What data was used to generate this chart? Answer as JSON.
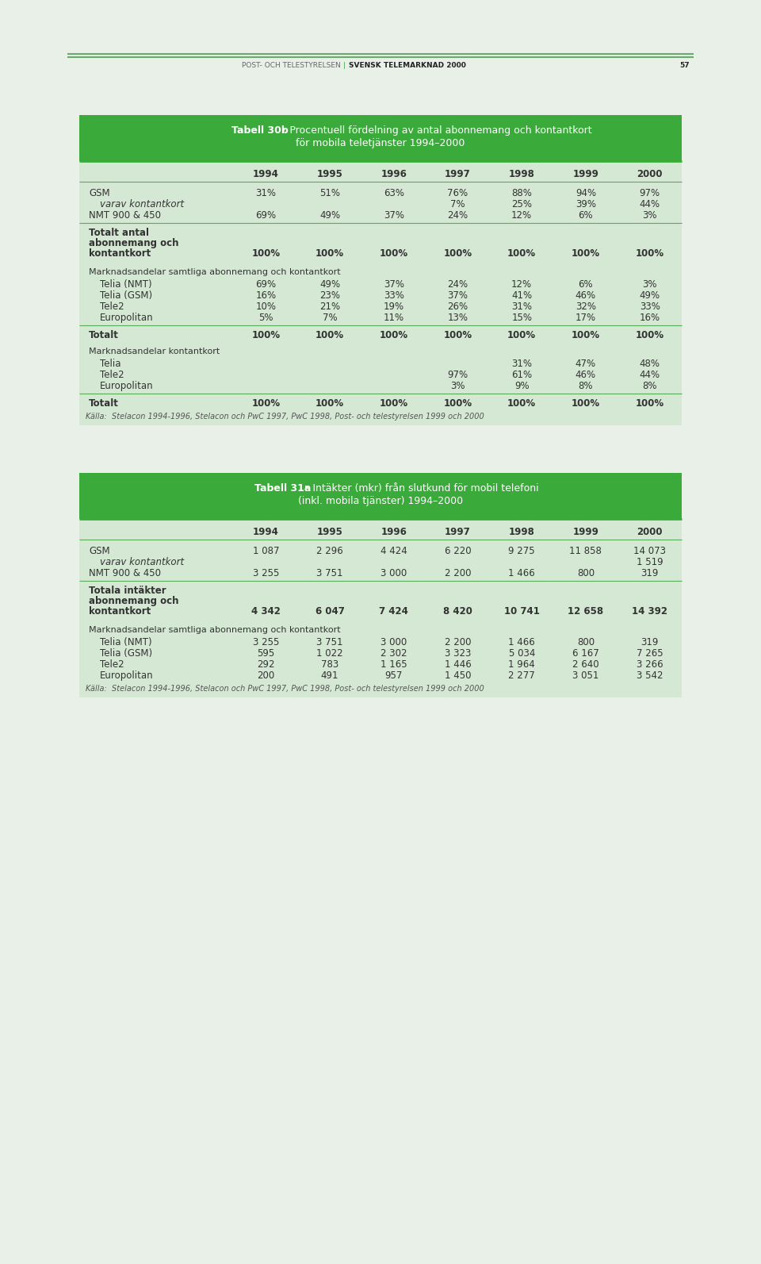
{
  "page_bg": "#e8f0e8",
  "table_bg": "#d4e8d4",
  "header_bg": "#3aaa3a",
  "line_color": "#5aaa5a",
  "text_color": "#333333",
  "header_line_color": "#6aaa6a",
  "page_header": {
    "left": "POST- OCH TELESTYRELSEN",
    "right": "SVENSK TELEMARKNAD 2000",
    "page": "57"
  },
  "table1": {
    "title1_bold": "Tabell 30b",
    "title1_rest": " • Procentuell fördelning av antal abonnemang och kontantkort",
    "title2": "för mobila teletjänster 1994–2000",
    "years": [
      "1994",
      "1995",
      "1996",
      "1997",
      "1998",
      "1999",
      "2000"
    ],
    "sections": [
      {
        "rows": [
          {
            "label": "GSM",
            "indent": false,
            "bold": false,
            "italic": false,
            "values": [
              "31%",
              "51%",
              "63%",
              "76%",
              "88%",
              "94%",
              "97%"
            ]
          },
          {
            "label": "varav kontantkort",
            "indent": true,
            "bold": false,
            "italic": true,
            "values": [
              "",
              "",
              "",
              "7%",
              "25%",
              "39%",
              "44%"
            ]
          },
          {
            "label": "NMT 900 & 450",
            "indent": false,
            "bold": false,
            "italic": false,
            "values": [
              "69%",
              "49%",
              "37%",
              "24%",
              "12%",
              "6%",
              "3%"
            ]
          }
        ],
        "divider_after": true
      },
      {
        "rows": [
          {
            "label": "Totalt antal abonnemang och kontantkort",
            "indent": false,
            "bold": true,
            "italic": false,
            "multiline": true,
            "values": [
              "100%",
              "100%",
              "100%",
              "100%",
              "100%",
              "100%",
              "100%"
            ]
          }
        ],
        "divider_after": false,
        "space_after": true
      },
      {
        "rows": [
          {
            "label": "Marknadsandelar samtliga abonnemang och kontantkort",
            "indent": false,
            "bold": false,
            "italic": false,
            "span": true,
            "values": []
          },
          {
            "label": "Telia (NMT)",
            "indent": true,
            "bold": false,
            "italic": false,
            "values": [
              "69%",
              "49%",
              "37%",
              "24%",
              "12%",
              "6%",
              "3%"
            ]
          },
          {
            "label": "Telia (GSM)",
            "indent": true,
            "bold": false,
            "italic": false,
            "values": [
              "16%",
              "23%",
              "33%",
              "37%",
              "41%",
              "46%",
              "49%"
            ]
          },
          {
            "label": "Tele2",
            "indent": true,
            "bold": false,
            "italic": false,
            "values": [
              "10%",
              "21%",
              "19%",
              "26%",
              "31%",
              "32%",
              "33%"
            ]
          },
          {
            "label": "Europolitan",
            "indent": true,
            "bold": false,
            "italic": false,
            "values": [
              "5%",
              "7%",
              "11%",
              "13%",
              "15%",
              "17%",
              "16%"
            ]
          }
        ],
        "divider_after": true
      },
      {
        "rows": [
          {
            "label": "Totalt",
            "indent": false,
            "bold": true,
            "italic": false,
            "values": [
              "100%",
              "100%",
              "100%",
              "100%",
              "100%",
              "100%",
              "100%"
            ]
          }
        ],
        "divider_after": false,
        "space_after": true
      },
      {
        "rows": [
          {
            "label": "Marknadsandelar kontantkort",
            "indent": false,
            "bold": false,
            "italic": false,
            "span": true,
            "values": []
          },
          {
            "label": "Telia",
            "indent": true,
            "bold": false,
            "italic": false,
            "values": [
              "",
              "",
              "",
              "",
              "31%",
              "47%",
              "48%"
            ]
          },
          {
            "label": "Tele2",
            "indent": true,
            "bold": false,
            "italic": false,
            "values": [
              "",
              "",
              "",
              "97%",
              "61%",
              "46%",
              "44%"
            ]
          },
          {
            "label": "Europolitan",
            "indent": true,
            "bold": false,
            "italic": false,
            "values": [
              "",
              "",
              "",
              "3%",
              "9%",
              "8%",
              "8%"
            ]
          }
        ],
        "divider_after": true
      },
      {
        "rows": [
          {
            "label": "Totalt",
            "indent": false,
            "bold": true,
            "italic": false,
            "values": [
              "100%",
              "100%",
              "100%",
              "100%",
              "100%",
              "100%",
              "100%"
            ]
          }
        ],
        "divider_after": false
      }
    ],
    "source": "Källa:  Stelacon 1994-1996, Stelacon och PwC 1997, PwC 1998, Post- och telestyrelsen 1999 och 2000"
  },
  "table2": {
    "title1_bold": "Tabell 31a",
    "title1_rest": " • Intäkter (mkr) från slutkund för mobil telefoni",
    "title2": "(inkl. mobila tjänster) 1994–2000",
    "years": [
      "1994",
      "1995",
      "1996",
      "1997",
      "1998",
      "1999",
      "2000"
    ],
    "sections": [
      {
        "rows": [
          {
            "label": "GSM",
            "indent": false,
            "bold": false,
            "italic": false,
            "values": [
              "1 087",
              "2 296",
              "4 424",
              "6 220",
              "9 275",
              "11 858",
              "14 073"
            ]
          },
          {
            "label": "varav kontantkort",
            "indent": true,
            "bold": false,
            "italic": true,
            "values": [
              "",
              "",
              "",
              "",
              "",
              "",
              "1 519"
            ]
          },
          {
            "label": "NMT 900 & 450",
            "indent": false,
            "bold": false,
            "italic": false,
            "values": [
              "3 255",
              "3 751",
              "3 000",
              "2 200",
              "1 466",
              "800",
              "319"
            ]
          }
        ],
        "divider_after": true
      },
      {
        "rows": [
          {
            "label": "Totala intäkter abonnemang och kontantkort",
            "indent": false,
            "bold": true,
            "italic": false,
            "multiline": true,
            "values": [
              "4 342",
              "6 047",
              "7 424",
              "8 420",
              "10 741",
              "12 658",
              "14 392"
            ]
          }
        ],
        "divider_after": false,
        "space_after": true
      },
      {
        "rows": [
          {
            "label": "Marknadsandelar samtliga abonnemang och kontantkort",
            "indent": false,
            "bold": false,
            "italic": false,
            "span": true,
            "values": []
          },
          {
            "label": "Telia (NMT)",
            "indent": true,
            "bold": false,
            "italic": false,
            "values": [
              "3 255",
              "3 751",
              "3 000",
              "2 200",
              "1 466",
              "800",
              "319"
            ]
          },
          {
            "label": "Telia (GSM)",
            "indent": true,
            "bold": false,
            "italic": false,
            "values": [
              "595",
              "1 022",
              "2 302",
              "3 323",
              "5 034",
              "6 167",
              "7 265"
            ]
          },
          {
            "label": "Tele2",
            "indent": true,
            "bold": false,
            "italic": false,
            "values": [
              "292",
              "783",
              "1 165",
              "1 446",
              "1 964",
              "2 640",
              "3 266"
            ]
          },
          {
            "label": "Europolitan",
            "indent": true,
            "bold": false,
            "italic": false,
            "values": [
              "200",
              "491",
              "957",
              "1 450",
              "2 277",
              "3 051",
              "3 542"
            ]
          }
        ],
        "divider_after": false
      }
    ],
    "source": "Källa:  Stelacon 1994-1996, Stelacon och PwC 1997, PwC 1998, Post- och telestyrelsen 1999 och 2000"
  }
}
